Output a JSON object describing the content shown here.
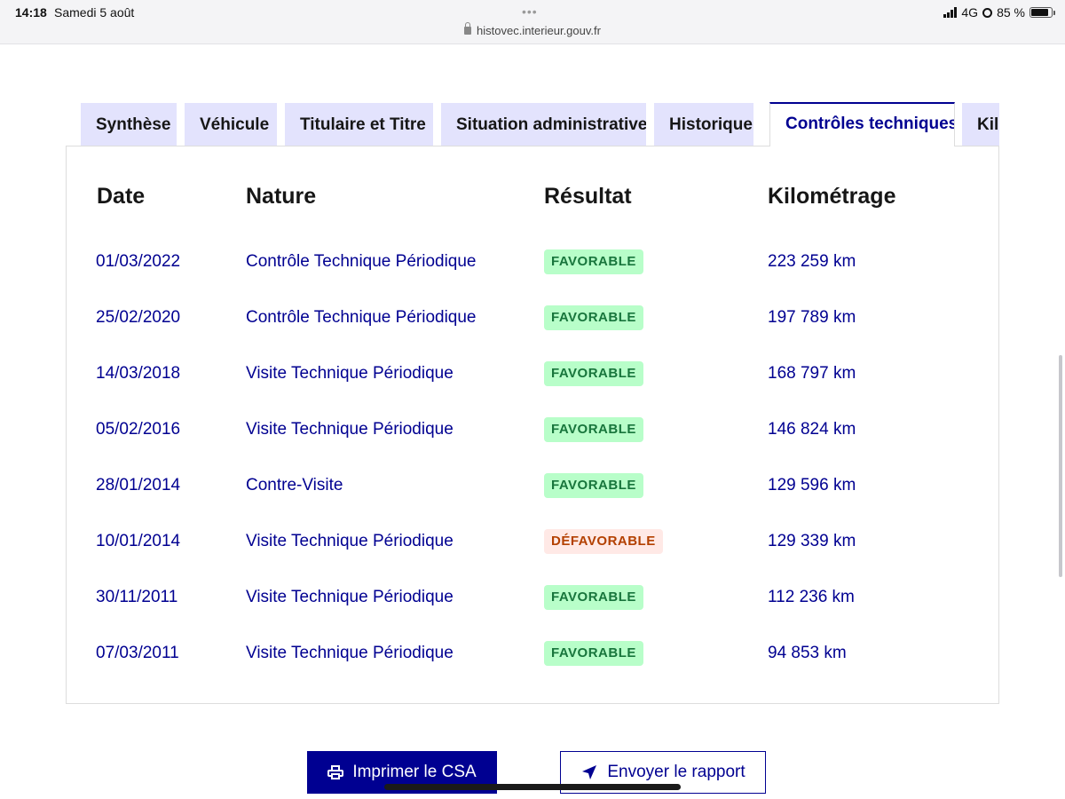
{
  "status_bar": {
    "time": "14:18",
    "date": "Samedi 5 août",
    "url": "histovec.interieur.gouv.fr",
    "network": "4G",
    "battery": "85 %"
  },
  "tabs": [
    {
      "label": "Synthèse",
      "active": false
    },
    {
      "label": "Véhicule",
      "active": false
    },
    {
      "label": "Titulaire et Titre",
      "active": false
    },
    {
      "label": "Situation administrative",
      "active": false
    },
    {
      "label": "Historique",
      "active": false
    },
    {
      "label": "Contrôles techniques",
      "active": true
    },
    {
      "label": "Kil",
      "active": false
    }
  ],
  "table": {
    "headers": [
      "Date",
      "Nature",
      "Résultat",
      "Kilométrage"
    ],
    "rows": [
      {
        "date": "01/03/2022",
        "nature": "Contrôle Technique Périodique",
        "result": "FAVORABLE",
        "km": "223 259 km"
      },
      {
        "date": "25/02/2020",
        "nature": "Contrôle Technique Périodique",
        "result": "FAVORABLE",
        "km": "197 789 km"
      },
      {
        "date": "14/03/2018",
        "nature": "Visite Technique Périodique",
        "result": "FAVORABLE",
        "km": "168 797 km"
      },
      {
        "date": "05/02/2016",
        "nature": "Visite Technique Périodique",
        "result": "FAVORABLE",
        "km": "146 824 km"
      },
      {
        "date": "28/01/2014",
        "nature": "Contre-Visite",
        "result": "FAVORABLE",
        "km": "129 596 km"
      },
      {
        "date": "10/01/2014",
        "nature": "Visite Technique Périodique",
        "result": "DÉFAVORABLE",
        "km": "129 339 km"
      },
      {
        "date": "30/11/2011",
        "nature": "Visite Technique Périodique",
        "result": "FAVORABLE",
        "km": "112 236 km"
      },
      {
        "date": "07/03/2011",
        "nature": "Visite Technique Périodique",
        "result": "FAVORABLE",
        "km": "94 853 km"
      }
    ]
  },
  "actions": {
    "print_label": "Imprimer le CSA",
    "send_label": "Envoyer le rapport"
  },
  "icons": {
    "print": "printer-icon",
    "send": "send-arrow-icon",
    "lock": "lock-icon"
  },
  "colors": {
    "primary": "#000091",
    "tab_bg": "#e3e3fd",
    "favorable_bg": "#b8fec9",
    "favorable_text": "#18753c",
    "defavorable_bg": "#ffe9e6",
    "defavorable_text": "#b34000"
  }
}
